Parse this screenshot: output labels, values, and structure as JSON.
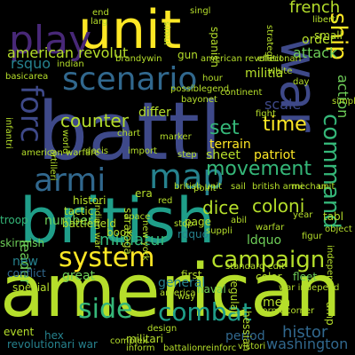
{
  "background": "#000000",
  "palette": [
    "#440154",
    "#482878",
    "#3e4989",
    "#31688e",
    "#26828e",
    "#1f9e89",
    "#35b779",
    "#6ece58",
    "#b5de2b",
    "#fde725"
  ],
  "words": [
    {
      "text": "battl",
      "color": "#3e4989"
    },
    {
      "text": "american",
      "color": "#b5de2b"
    },
    {
      "text": "british",
      "color": "#1f9e89"
    },
    {
      "text": "unit",
      "color": "#fde725"
    },
    {
      "text": "war",
      "color": "#3e4989"
    },
    {
      "text": "scenario",
      "color": "#31688e"
    },
    {
      "text": "play",
      "color": "#482878"
    },
    {
      "text": "armi",
      "color": "#31688e"
    },
    {
      "text": "map",
      "color": "#26828e"
    },
    {
      "text": "forc",
      "color": "#3e4989"
    },
    {
      "text": "campaign",
      "color": "#b5de2b"
    },
    {
      "text": "system",
      "color": "#fde725"
    },
    {
      "text": "movement",
      "color": "#35b779"
    },
    {
      "text": "command",
      "color": "#35b779"
    },
    {
      "text": "combat",
      "color": "#1f9e89"
    },
    {
      "text": "side",
      "color": "#35b779"
    },
    {
      "text": "ship",
      "color": "#fde725"
    },
    {
      "text": "counter",
      "color": "#b5de2b"
    },
    {
      "text": "set",
      "color": "#35b779"
    },
    {
      "text": "time",
      "color": "#fde725"
    },
    {
      "text": "dice",
      "color": "#b5de2b"
    },
    {
      "text": "coloni",
      "color": "#b5de2b"
    },
    {
      "text": "french",
      "color": "#b5de2b"
    },
    {
      "text": "american revolut",
      "color": "#b5de2b"
    },
    {
      "text": "american revolutionari",
      "color": "#b5de2b"
    },
    {
      "text": "histor",
      "color": "#31688e"
    },
    {
      "text": "washington",
      "color": "#31688e"
    },
    {
      "text": "period",
      "color": "#31688e"
    },
    {
      "text": "miniatur",
      "color": "#35b779"
    },
    {
      "text": "leader",
      "color": "#6ece58"
    },
    {
      "text": "number",
      "color": "#6ece58"
    },
    {
      "text": "attack",
      "color": "#6ece58"
    },
    {
      "text": "action",
      "color": "#6ece58"
    },
    {
      "text": "scale",
      "color": "#3e4989"
    },
    {
      "text": "rsquo",
      "color": "#26828e"
    },
    {
      "text": "ldquo",
      "color": "#6ece58"
    },
    {
      "text": "rdquo",
      "color": "#26828e"
    },
    {
      "text": "new",
      "color": "#26828e"
    },
    {
      "text": "great",
      "color": "#6ece58"
    },
    {
      "text": "book",
      "color": "#b5de2b"
    },
    {
      "text": "general",
      "color": "#26828e"
    },
    {
      "text": "men",
      "color": "#b5de2b"
    },
    {
      "text": "militia",
      "color": "#b5de2b"
    },
    {
      "text": "order",
      "color": "#b5de2b"
    },
    {
      "text": "differ",
      "color": "#b5de2b"
    },
    {
      "text": "terrain",
      "color": "#fde725"
    },
    {
      "text": "sheet",
      "color": "#b5de2b"
    },
    {
      "text": "patriot",
      "color": "#fde725"
    },
    {
      "text": "revolutionari war",
      "color": "#26828e"
    },
    {
      "text": "troop",
      "color": "#35b779"
    },
    {
      "text": "skirmish",
      "color": "#6ece58"
    },
    {
      "text": "conflict",
      "color": "#31688e"
    },
    {
      "text": "event",
      "color": "#b5de2b"
    },
    {
      "text": "hex",
      "color": "#26828e"
    },
    {
      "text": "special",
      "color": "#b5de2b"
    },
    {
      "text": "militari",
      "color": "#b5de2b"
    },
    {
      "text": "hessian",
      "color": "#b5de2b"
    },
    {
      "text": "naval",
      "color": "#6ece58"
    },
    {
      "text": "first",
      "color": "#b5de2b"
    },
    {
      "text": "color",
      "color": "#b5de2b"
    },
    {
      "text": "fleet",
      "color": "#6ece58"
    },
    {
      "text": "regular",
      "color": "#b5de2b"
    },
    {
      "text": "histori",
      "color": "#b5de2b"
    },
    {
      "text": "tactic",
      "color": "#b5de2b"
    },
    {
      "text": "battlefield",
      "color": "#b5de2b"
    },
    {
      "text": "saratoga",
      "color": "#b5de2b"
    },
    {
      "text": "page",
      "color": "#b5de2b"
    },
    {
      "text": "era",
      "color": "#b5de2b"
    },
    {
      "text": "tabl",
      "color": "#b5de2b"
    },
    {
      "text": "gun",
      "color": "#b5de2b"
    },
    {
      "text": "spanish",
      "color": "#b5de2b"
    },
    {
      "text": "small",
      "color": "#b5de2b"
    },
    {
      "text": "simpl",
      "color": "#b5de2b"
    },
    {
      "text": "year",
      "color": "#b5de2b"
    },
    {
      "text": "figur",
      "color": "#b5de2b"
    },
    {
      "text": "object",
      "color": "#b5de2b"
    },
    {
      "text": "amp",
      "color": "#b5de2b"
    },
    {
      "text": "way",
      "color": "#b5de2b"
    },
    {
      "text": "end",
      "color": "#b5de2b"
    },
    {
      "text": "larg",
      "color": "#b5de2b"
    },
    {
      "text": "singl",
      "color": "#b5de2b"
    },
    {
      "text": "indian",
      "color": "#b5de2b"
    },
    {
      "text": "basic",
      "color": "#b5de2b"
    },
    {
      "text": "area",
      "color": "#b5de2b"
    },
    {
      "text": "hour",
      "color": "#b5de2b"
    },
    {
      "text": "continent",
      "color": "#b5de2b"
    },
    {
      "text": "white",
      "color": "#b5de2b"
    },
    {
      "text": "day",
      "color": "#b5de2b"
    },
    {
      "text": "fight",
      "color": "#b5de2b"
    },
    {
      "text": "infantri",
      "color": "#b5de2b"
    },
    {
      "text": "american warfare",
      "color": "#b5de2b"
    },
    {
      "text": "world",
      "color": "#b5de2b"
    },
    {
      "text": "chart",
      "color": "#b5de2b"
    },
    {
      "text": "decis",
      "color": "#b5de2b"
    },
    {
      "text": "british armi",
      "color": "#b5de2b"
    },
    {
      "text": "mechan",
      "color": "#b5de2b"
    },
    {
      "text": "unit",
      "color": "#b5de2b"
    },
    {
      "text": "red",
      "color": "#b5de2b"
    },
    {
      "text": "abil",
      "color": "#b5de2b"
    },
    {
      "text": "warfar",
      "color": "#b5de2b"
    },
    {
      "text": "suppli",
      "color": "#b5de2b"
    },
    {
      "text": "independ",
      "color": "#b5de2b"
    },
    {
      "text": "war independ",
      "color": "#b5de2b"
    },
    {
      "text": "format",
      "color": "#b5de2b"
    },
    {
      "text": "corner",
      "color": "#b5de2b"
    },
    {
      "text": "victori",
      "color": "#b5de2b"
    },
    {
      "text": "inform",
      "color": "#b5de2b"
    },
    {
      "text": "battalion",
      "color": "#b5de2b"
    },
    {
      "text": "reinforc",
      "color": "#b5de2b"
    },
    {
      "text": "design",
      "color": "#b5de2b"
    },
    {
      "text": "america",
      "color": "#b5de2b"
    },
    {
      "text": "standard edit",
      "color": "#b5de2b"
    },
    {
      "text": "strategi",
      "color": "#b5de2b"
    },
    {
      "text": "liberti",
      "color": "#b5de2b"
    },
    {
      "text": "effect",
      "color": "#b5de2b"
    },
    {
      "text": "brandywin",
      "color": "#b5de2b"
    },
    {
      "text": "simul",
      "color": "#b5de2b"
    },
    {
      "text": "complex",
      "color": "#b5de2b"
    },
    {
      "text": "artilleri",
      "color": "#b5de2b"
    },
    {
      "text": "point",
      "color": "#b5de2b"
    },
    {
      "text": "indian war",
      "color": "#b5de2b"
    },
    {
      "text": "new york",
      "color": "#b5de2b"
    },
    {
      "text": "possibl",
      "color": "#b5de2b"
    },
    {
      "text": "legend",
      "color": "#b5de2b"
    },
    {
      "text": "marker",
      "color": "#b5de2b"
    },
    {
      "text": "space",
      "color": "#b5de2b"
    },
    {
      "text": "step",
      "color": "#b5de2b"
    },
    {
      "text": "import",
      "color": "#b5de2b"
    },
    {
      "text": "bayonet",
      "color": "#b5de2b"
    },
    {
      "text": "british unit",
      "color": "#b5de2b"
    },
    {
      "text": "stop",
      "color": "#b5de2b"
    },
    {
      "text": "sail",
      "color": "#b5de2b"
    }
  ]
}
